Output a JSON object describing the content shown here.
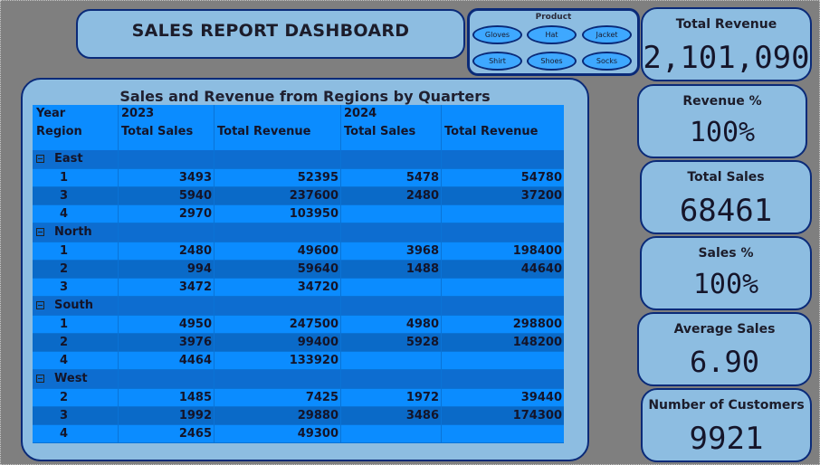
{
  "dashboard": {
    "title": "SALES REPORT DASHBOARD"
  },
  "slicer": {
    "title": "Product",
    "items": [
      "Gloves",
      "Hat",
      "Jacket",
      "Shirt",
      "Shoes",
      "Socks"
    ]
  },
  "kpis": [
    {
      "label": "Total Revenue",
      "value": "2,101,090"
    },
    {
      "label": "Revenue %",
      "value": "100%"
    },
    {
      "label": "Total Sales",
      "value": "68461"
    },
    {
      "label": "Sales %",
      "value": "100%"
    },
    {
      "label": "Average Sales",
      "value": "6.90"
    },
    {
      "label": "Number of Customers",
      "value": "9921"
    }
  ],
  "matrix": {
    "title": "Sales and Revenue from Regions by Quarters",
    "header_row1": [
      "Year",
      "2023",
      "",
      "2024",
      ""
    ],
    "header_row2": [
      "Region",
      "Total Sales",
      "Total Revenue",
      "Total Sales",
      "Total Revenue"
    ],
    "groups": [
      {
        "region": "East",
        "rows": [
          {
            "q": "1",
            "s2023": "3493",
            "r2023": "52395",
            "s2024": "5478",
            "r2024": "54780"
          },
          {
            "q": "3",
            "s2023": "5940",
            "r2023": "237600",
            "s2024": "2480",
            "r2024": "37200"
          },
          {
            "q": "4",
            "s2023": "2970",
            "r2023": "103950",
            "s2024": "",
            "r2024": ""
          }
        ]
      },
      {
        "region": "North",
        "rows": [
          {
            "q": "1",
            "s2023": "2480",
            "r2023": "49600",
            "s2024": "3968",
            "r2024": "198400"
          },
          {
            "q": "2",
            "s2023": "994",
            "r2023": "59640",
            "s2024": "1488",
            "r2024": "44640"
          },
          {
            "q": "3",
            "s2023": "3472",
            "r2023": "34720",
            "s2024": "",
            "r2024": ""
          }
        ]
      },
      {
        "region": "South",
        "rows": [
          {
            "q": "1",
            "s2023": "4950",
            "r2023": "247500",
            "s2024": "4980",
            "r2024": "298800"
          },
          {
            "q": "2",
            "s2023": "3976",
            "r2023": "99400",
            "s2024": "5928",
            "r2024": "148200"
          },
          {
            "q": "4",
            "s2023": "4464",
            "r2023": "133920",
            "s2024": "",
            "r2024": ""
          }
        ]
      },
      {
        "region": "West",
        "rows": [
          {
            "q": "2",
            "s2023": "1485",
            "r2023": "7425",
            "s2024": "1972",
            "r2024": "39440"
          },
          {
            "q": "3",
            "s2023": "1992",
            "r2023": "29880",
            "s2024": "3486",
            "r2024": "174300"
          },
          {
            "q": "4",
            "s2023": "2465",
            "r2023": "49300",
            "s2024": "",
            "r2024": ""
          }
        ]
      }
    ]
  }
}
